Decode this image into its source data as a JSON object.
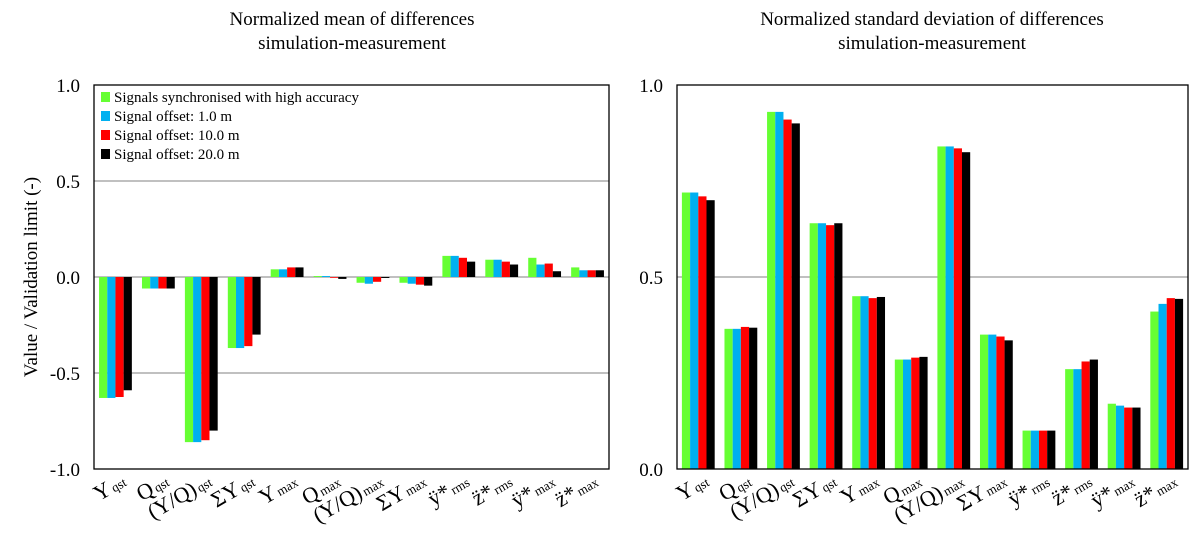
{
  "chart_data": [
    {
      "type": "bar",
      "title_lines": [
        "Normalized mean of differences",
        "simulation-measurement"
      ],
      "ylabel": "Value / Validation limit (-)",
      "ylim": [
        -1.0,
        1.0
      ],
      "yticks": [
        "1.0",
        "0.5",
        "0.0",
        "-0.5",
        "-1.0"
      ],
      "ytick_values": [
        1.0,
        0.5,
        0.0,
        -0.5,
        -1.0
      ],
      "grid": true,
      "legend_position": "top-left",
      "categories": [
        {
          "main": "Y",
          "sub": "qst"
        },
        {
          "main": "Q",
          "sub": "qst"
        },
        {
          "main": "(Y/Q)",
          "sub": "qst"
        },
        {
          "main": "ΣY",
          "sub": "qst"
        },
        {
          "main": "Y",
          "sub": "max"
        },
        {
          "main": "Q",
          "sub": "max"
        },
        {
          "main": "(Y/Q)",
          "sub": "max"
        },
        {
          "main": "ΣY",
          "sub": "max"
        },
        {
          "main": "ÿ*",
          "sub": "rms"
        },
        {
          "main": "z̈*",
          "sub": "rms"
        },
        {
          "main": "ÿ*",
          "sub": "max"
        },
        {
          "main": "z̈*",
          "sub": "max"
        }
      ],
      "series": [
        {
          "name": "Signals synchronised with high accuracy",
          "color": "#66ff33",
          "values": [
            -0.63,
            -0.06,
            -0.86,
            -0.37,
            0.04,
            0.005,
            -0.03,
            -0.03,
            0.11,
            0.09,
            0.1,
            0.05
          ]
        },
        {
          "name": "Signal offset: 1.0 m",
          "color": "#00b0f0",
          "values": [
            -0.63,
            -0.06,
            -0.86,
            -0.37,
            0.04,
            0.005,
            -0.035,
            -0.035,
            0.11,
            0.09,
            0.065,
            0.035
          ]
        },
        {
          "name": "Signal offset: 10.0 m",
          "color": "#ff0000",
          "values": [
            -0.625,
            -0.06,
            -0.85,
            -0.36,
            0.05,
            0.0,
            -0.025,
            -0.04,
            0.1,
            0.08,
            0.07,
            0.035
          ]
        },
        {
          "name": "Signal offset: 20.0 m",
          "color": "#000000",
          "values": [
            -0.59,
            -0.06,
            -0.8,
            -0.3,
            0.05,
            -0.01,
            -0.005,
            -0.045,
            0.08,
            0.065,
            0.03,
            0.035
          ]
        }
      ]
    },
    {
      "type": "bar",
      "title_lines": [
        "Normalized standard deviation of differences",
        "simulation-measurement"
      ],
      "ylabel": "",
      "ylim": [
        0.0,
        1.0
      ],
      "yticks": [
        "1.0",
        "0.5",
        "0.0"
      ],
      "ytick_values": [
        1.0,
        0.5,
        0.0
      ],
      "grid": true,
      "categories": [
        {
          "main": "Y",
          "sub": "qst"
        },
        {
          "main": "Q",
          "sub": "qst"
        },
        {
          "main": "(Y/Q)",
          "sub": "qst"
        },
        {
          "main": "ΣY",
          "sub": "qst"
        },
        {
          "main": "Y",
          "sub": "max"
        },
        {
          "main": "Q",
          "sub": "max"
        },
        {
          "main": "(Y/Q)",
          "sub": "max"
        },
        {
          "main": "ΣY",
          "sub": "max"
        },
        {
          "main": "ÿ*",
          "sub": "rms"
        },
        {
          "main": "z̈*",
          "sub": "rms"
        },
        {
          "main": "ÿ*",
          "sub": "max"
        },
        {
          "main": "z̈*",
          "sub": "max"
        }
      ],
      "series": [
        {
          "name": "Signals synchronised with high accuracy",
          "color": "#66ff33",
          "values": [
            0.72,
            0.365,
            0.93,
            0.64,
            0.45,
            0.285,
            0.84,
            0.35,
            0.1,
            0.26,
            0.17,
            0.41
          ]
        },
        {
          "name": "Signal offset: 1.0 m",
          "color": "#00b0f0",
          "values": [
            0.72,
            0.365,
            0.93,
            0.64,
            0.45,
            0.285,
            0.84,
            0.35,
            0.1,
            0.26,
            0.165,
            0.43
          ]
        },
        {
          "name": "Signal offset: 10.0 m",
          "color": "#ff0000",
          "values": [
            0.71,
            0.37,
            0.91,
            0.635,
            0.445,
            0.29,
            0.835,
            0.345,
            0.1,
            0.28,
            0.16,
            0.445
          ]
        },
        {
          "name": "Signal offset: 20.0 m",
          "color": "#000000",
          "values": [
            0.7,
            0.368,
            0.9,
            0.64,
            0.448,
            0.292,
            0.825,
            0.335,
            0.1,
            0.285,
            0.16,
            0.443
          ]
        }
      ]
    }
  ]
}
